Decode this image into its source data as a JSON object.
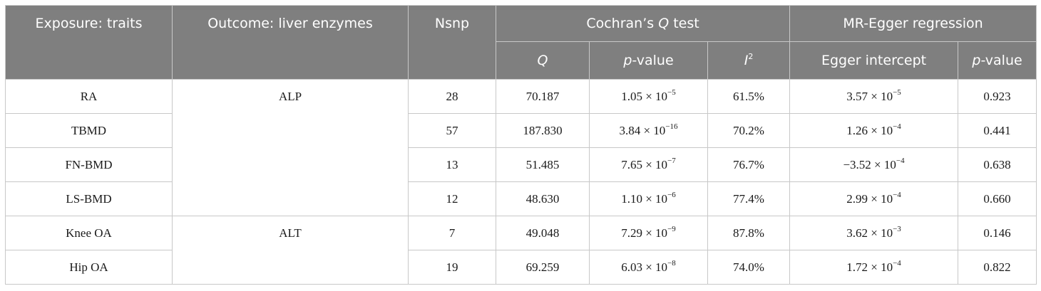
{
  "table": {
    "header": {
      "exposure": "Exposure: traits",
      "outcome": "Outcome: liver enzymes",
      "nsnp": "Nsnp",
      "cochran_prefix": "Cochran’s ",
      "cochran_q": "Q",
      "cochran_suffix": " test",
      "mr_egger": "MR-Egger regression",
      "q": "Q",
      "p": "p",
      "value_suffix": "-value",
      "i": "I",
      "i_sup": "2",
      "egger_intercept": "Egger intercept"
    },
    "groups": [
      {
        "outcome": "ALP"
      },
      {
        "outcome": "ALT"
      }
    ],
    "rows": [
      {
        "exposure": "RA",
        "nsnp": "28",
        "q": "70.187",
        "p_mant": "1.05 × 10",
        "p_exp": "−5",
        "i2": "61.5%",
        "int_mant": "3.57 × 10",
        "int_exp": "−5",
        "egger_p": "0.923"
      },
      {
        "exposure": "TBMD",
        "nsnp": "57",
        "q": "187.830",
        "p_mant": "3.84 × 10",
        "p_exp": "−16",
        "i2": "70.2%",
        "int_mant": "1.26 × 10",
        "int_exp": "−4",
        "egger_p": "0.441"
      },
      {
        "exposure": "FN-BMD",
        "nsnp": "13",
        "q": "51.485",
        "p_mant": "7.65 × 10",
        "p_exp": "−7",
        "i2": "76.7%",
        "int_mant": "−3.52 × 10",
        "int_exp": "−4",
        "egger_p": "0.638"
      },
      {
        "exposure": "LS-BMD",
        "nsnp": "12",
        "q": "48.630",
        "p_mant": "1.10 × 10",
        "p_exp": "−6",
        "i2": "77.4%",
        "int_mant": "2.99 × 10",
        "int_exp": "−4",
        "egger_p": "0.660"
      },
      {
        "exposure": "Knee OA",
        "nsnp": "7",
        "q": "49.048",
        "p_mant": "7.29 × 10",
        "p_exp": "−9",
        "i2": "87.8%",
        "int_mant": "3.62 × 10",
        "int_exp": "−3",
        "egger_p": "0.146"
      },
      {
        "exposure": "Hip OA",
        "nsnp": "19",
        "q": "69.259",
        "p_mant": "6.03 × 10",
        "p_exp": "−8",
        "i2": "74.0%",
        "int_mant": "1.72 × 10",
        "int_exp": "−4",
        "egger_p": "0.822"
      }
    ]
  }
}
